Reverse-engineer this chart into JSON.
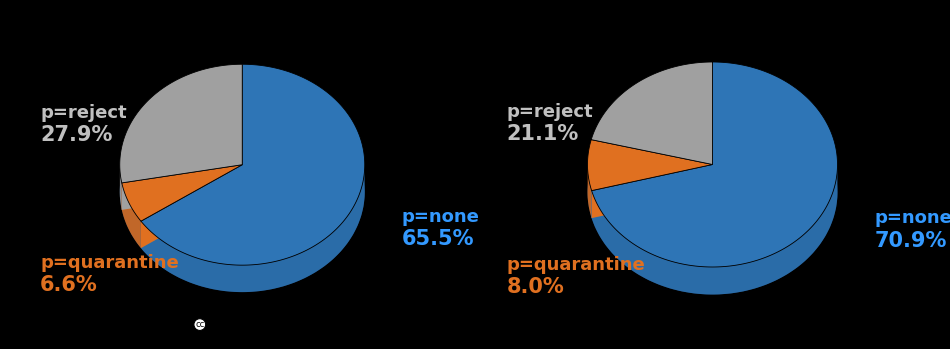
{
  "chart1": {
    "values": [
      65.5,
      6.6,
      27.9
    ],
    "labels": [
      "p=none",
      "p=quarantine",
      "p=reject"
    ],
    "percentages": [
      "65.5%",
      "6.6%",
      "27.9%"
    ],
    "colors": [
      "#2e75b6",
      "#e07020",
      "#a0a0a0"
    ],
    "label_colors": [
      "#3399ff",
      "#e07020",
      "#c0c0c0"
    ],
    "startangle": 90
  },
  "chart2": {
    "values": [
      70.9,
      8.0,
      21.1
    ],
    "labels": [
      "p=none",
      "p=quarantine",
      "p=reject"
    ],
    "percentages": [
      "70.9%",
      "8.0%",
      "21.1%"
    ],
    "colors": [
      "#2e75b6",
      "#e07020",
      "#a0a0a0"
    ],
    "label_colors": [
      "#3399ff",
      "#e07020",
      "#c0c0c0"
    ],
    "startangle": 90
  },
  "background_color": "#000000",
  "label_fontsize": 13,
  "pct_fontsize": 15,
  "label_positions_1": {
    "p=none": [
      1.25,
      -0.38,
      "left"
    ],
    "p=quarantine": [
      -1.55,
      -0.72,
      "left"
    ],
    "p=reject": [
      -1.45,
      0.42,
      "left"
    ]
  },
  "label_positions_2": {
    "p=none": [
      1.25,
      -0.38,
      "left"
    ],
    "p=quarantine": [
      -1.55,
      -0.72,
      "left"
    ],
    "p=reject": [
      -1.45,
      0.42,
      "left"
    ]
  }
}
